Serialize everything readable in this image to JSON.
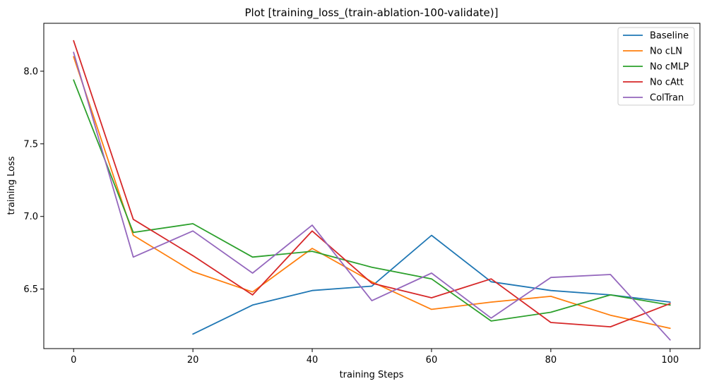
{
  "chart_data": {
    "type": "line",
    "title": "Plot [training_loss_(train-ablation-100-validate)]",
    "xlabel": "training Steps",
    "ylabel": "training Loss",
    "xlim": [
      -5,
      105
    ],
    "ylim": [
      6.09,
      8.33
    ],
    "xticks": [
      0,
      20,
      40,
      60,
      80,
      100
    ],
    "yticks": [
      6.5,
      7.0,
      7.5,
      8.0
    ],
    "xtick_labels": [
      "0",
      "20",
      "40",
      "60",
      "80",
      "100"
    ],
    "ytick_labels": [
      "6.5",
      "7.0",
      "7.5",
      "8.0"
    ],
    "grid": false,
    "legend_position": "top-right",
    "series": [
      {
        "name": "Baseline",
        "color": "#1f77b4",
        "x": [
          20,
          30,
          40,
          50,
          60,
          70,
          80,
          90,
          100
        ],
        "y": [
          6.19,
          6.39,
          6.49,
          6.52,
          6.87,
          6.55,
          6.49,
          6.46,
          6.41
        ]
      },
      {
        "name": "No cLN",
        "color": "#ff7f0e",
        "x": [
          0,
          10,
          20,
          30,
          40,
          50,
          60,
          70,
          80,
          90,
          100
        ],
        "y": [
          8.1,
          6.87,
          6.62,
          6.48,
          6.78,
          6.55,
          6.36,
          6.41,
          6.45,
          6.32,
          6.23
        ]
      },
      {
        "name": "No cMLP",
        "color": "#2ca02c",
        "x": [
          0,
          10,
          20,
          30,
          40,
          50,
          60,
          70,
          80,
          90,
          100
        ],
        "y": [
          7.94,
          6.89,
          6.95,
          6.72,
          6.76,
          6.65,
          6.57,
          6.28,
          6.34,
          6.46,
          6.39
        ]
      },
      {
        "name": "No cAtt",
        "color": "#d62728",
        "x": [
          0,
          10,
          20,
          30,
          40,
          50,
          60,
          70,
          80,
          90,
          100
        ],
        "y": [
          8.21,
          6.98,
          6.73,
          6.46,
          6.9,
          6.54,
          6.44,
          6.57,
          6.27,
          6.24,
          6.4
        ]
      },
      {
        "name": "ColTran",
        "color": "#9467bd",
        "x": [
          0,
          10,
          20,
          30,
          40,
          50,
          60,
          70,
          80,
          90,
          100
        ],
        "y": [
          8.13,
          6.72,
          6.9,
          6.61,
          6.94,
          6.42,
          6.61,
          6.3,
          6.58,
          6.6,
          6.15
        ]
      }
    ]
  }
}
